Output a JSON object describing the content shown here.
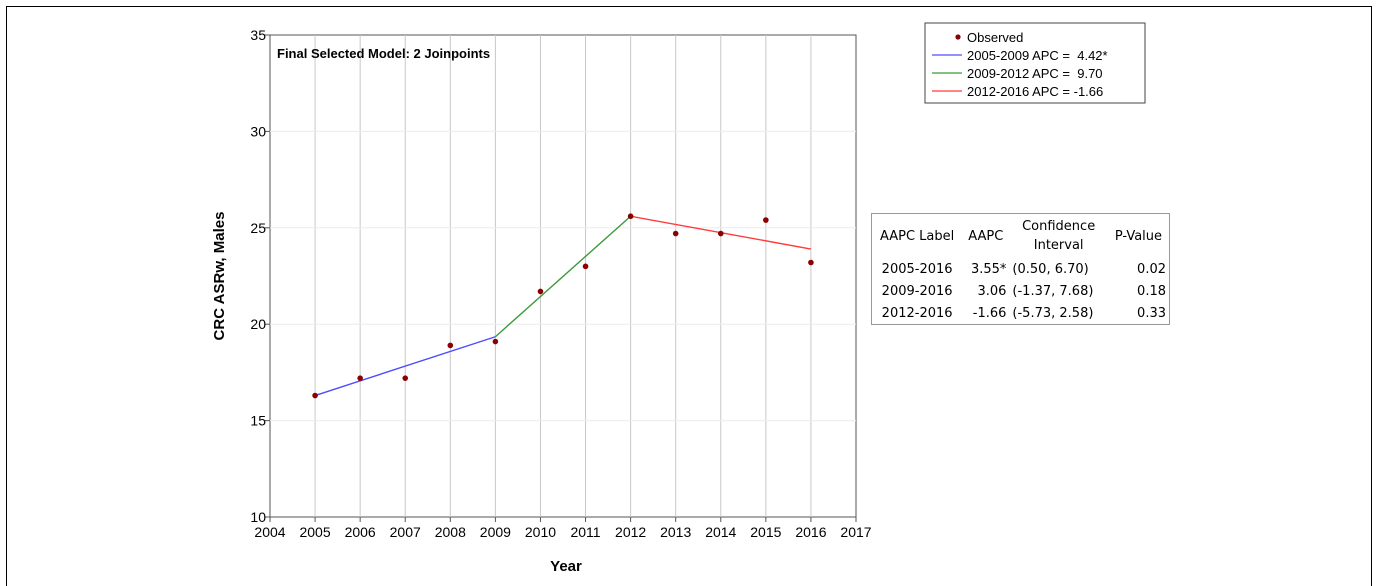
{
  "chart_data": {
    "type": "line",
    "title": "Final Selected Model: 2 Joinpoints",
    "xlabel": "Year",
    "ylabel": "CRC ASRw, Males",
    "xlim": [
      2004,
      2017
    ],
    "ylim": [
      10,
      35
    ],
    "x_ticks": [
      "2004",
      "2005",
      "2006",
      "2007",
      "2008",
      "2009",
      "2010",
      "2011",
      "2012",
      "2013",
      "2014",
      "2015",
      "2016",
      "2017"
    ],
    "y_ticks": [
      "10",
      "15",
      "20",
      "25",
      "30",
      "35"
    ],
    "grid": "vertical",
    "legend_position": "top-right",
    "observed": {
      "name": "Observed",
      "color": "#8b0000",
      "x": [
        2005,
        2006,
        2007,
        2008,
        2009,
        2010,
        2011,
        2012,
        2013,
        2014,
        2015,
        2016
      ],
      "y": [
        16.3,
        17.2,
        17.2,
        18.9,
        19.1,
        21.7,
        23.0,
        25.6,
        24.7,
        24.7,
        25.4,
        23.2
      ]
    },
    "series": [
      {
        "name": "2005-2009 APC =  4.42*",
        "color": "#4d4dff",
        "x": [
          2005,
          2009
        ],
        "y": [
          16.3,
          19.35
        ]
      },
      {
        "name": "2009-2012 APC =  9.70",
        "color": "#3c9a3c",
        "x": [
          2009,
          2012
        ],
        "y": [
          19.35,
          25.6
        ]
      },
      {
        "name": "2012-2016 APC = -1.66",
        "color": "#ff3b3b",
        "x": [
          2012,
          2016
        ],
        "y": [
          25.6,
          23.9
        ]
      }
    ]
  },
  "aapc_table": {
    "headers": {
      "label": "AAPC Label",
      "aapc": "AAPC",
      "ci_line1": "Confidence",
      "ci_line2": "Interval",
      "p": "P-Value"
    },
    "rows": [
      {
        "label": "2005-2016",
        "aapc": "3.55*",
        "ci": "(0.50, 6.70)",
        "p": "0.02"
      },
      {
        "label": "2009-2016",
        "aapc": "3.06",
        "ci": "(-1.37, 7.68)",
        "p": "0.18"
      },
      {
        "label": "2012-2016",
        "aapc": "-1.66",
        "ci": "(-5.73, 2.58)",
        "p": "0.33"
      }
    ]
  }
}
